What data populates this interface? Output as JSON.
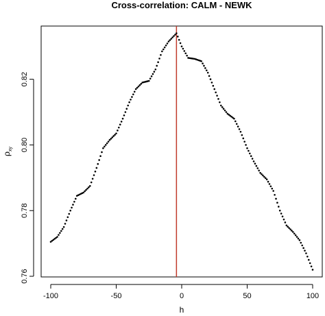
{
  "chart_data": {
    "type": "scatter",
    "title": "Cross-correlation: CALM - NEWK",
    "xlabel": "h",
    "ylabel_main": "ρ",
    "ylabel_sub": "xy",
    "xlim": [
      -100,
      100
    ],
    "ylim": [
      0.7598,
      0.8362
    ],
    "x_ticks": [
      -100,
      -50,
      0,
      50,
      100
    ],
    "x_tick_labels": [
      "-100",
      "-50",
      "0",
      "50",
      "100"
    ],
    "y_ticks": [
      0.76,
      0.78,
      0.8,
      0.82
    ],
    "y_tick_labels": [
      "0.76",
      "0.78",
      "0.80",
      "0.82"
    ],
    "vline_x": -4,
    "vline_color": "#c0392b",
    "point_color": "#000000",
    "curve_control_points": [
      [
        -100,
        0.7705
      ],
      [
        -95,
        0.772
      ],
      [
        -90,
        0.775
      ],
      [
        -85,
        0.78
      ],
      [
        -80,
        0.7845
      ],
      [
        -75,
        0.7855
      ],
      [
        -70,
        0.7875
      ],
      [
        -65,
        0.793
      ],
      [
        -60,
        0.799
      ],
      [
        -55,
        0.8015
      ],
      [
        -50,
        0.8035
      ],
      [
        -45,
        0.808
      ],
      [
        -40,
        0.813
      ],
      [
        -35,
        0.817
      ],
      [
        -30,
        0.819
      ],
      [
        -25,
        0.8195
      ],
      [
        -20,
        0.823
      ],
      [
        -15,
        0.8285
      ],
      [
        -10,
        0.8315
      ],
      [
        -4,
        0.834
      ],
      [
        0,
        0.83
      ],
      [
        5,
        0.8265
      ],
      [
        10,
        0.8262
      ],
      [
        15,
        0.8255
      ],
      [
        20,
        0.822
      ],
      [
        25,
        0.817
      ],
      [
        30,
        0.812
      ],
      [
        35,
        0.8095
      ],
      [
        40,
        0.808
      ],
      [
        45,
        0.804
      ],
      [
        50,
        0.799
      ],
      [
        55,
        0.795
      ],
      [
        60,
        0.7915
      ],
      [
        65,
        0.7895
      ],
      [
        70,
        0.786
      ],
      [
        75,
        0.78
      ],
      [
        80,
        0.7755
      ],
      [
        85,
        0.7735
      ],
      [
        90,
        0.771
      ],
      [
        95,
        0.767
      ],
      [
        100,
        0.762
      ]
    ]
  }
}
